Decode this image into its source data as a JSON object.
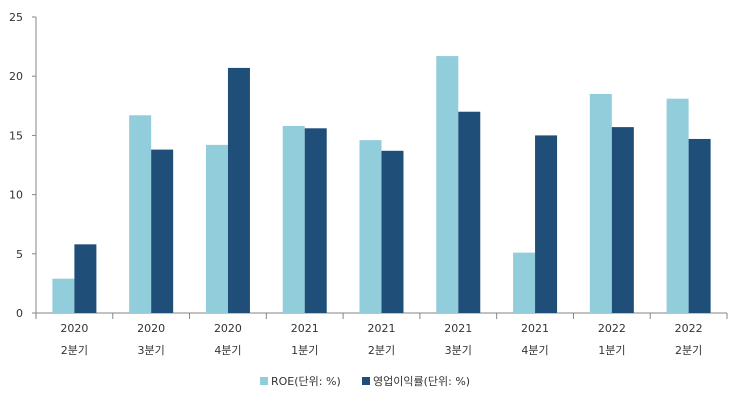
{
  "chart_data": {
    "type": "bar",
    "categories": [
      [
        "2020",
        "2분기"
      ],
      [
        "2020",
        "3분기"
      ],
      [
        "2020",
        "4분기"
      ],
      [
        "2021",
        "1분기"
      ],
      [
        "2021",
        "2분기"
      ],
      [
        "2021",
        "3분기"
      ],
      [
        "2021",
        "4분기"
      ],
      [
        "2022",
        "1분기"
      ],
      [
        "2022",
        "2분기"
      ]
    ],
    "series": [
      {
        "name": "ROE(단위: %)",
        "color": "#92cddc",
        "values": [
          2.9,
          16.7,
          14.2,
          15.8,
          14.6,
          21.7,
          5.1,
          18.5,
          18.1
        ]
      },
      {
        "name": "영업이익률(단위: %)",
        "color": "#1f4e79",
        "values": [
          5.8,
          13.8,
          20.7,
          15.6,
          13.7,
          17.0,
          15.0,
          15.7,
          14.7
        ]
      }
    ],
    "title": "",
    "xlabel": "",
    "ylabel": "",
    "ylim": [
      0,
      25
    ],
    "yticks": [
      "0",
      "5",
      "10",
      "15",
      "20",
      "25"
    ],
    "grid": false,
    "legend_position": "bottom"
  }
}
